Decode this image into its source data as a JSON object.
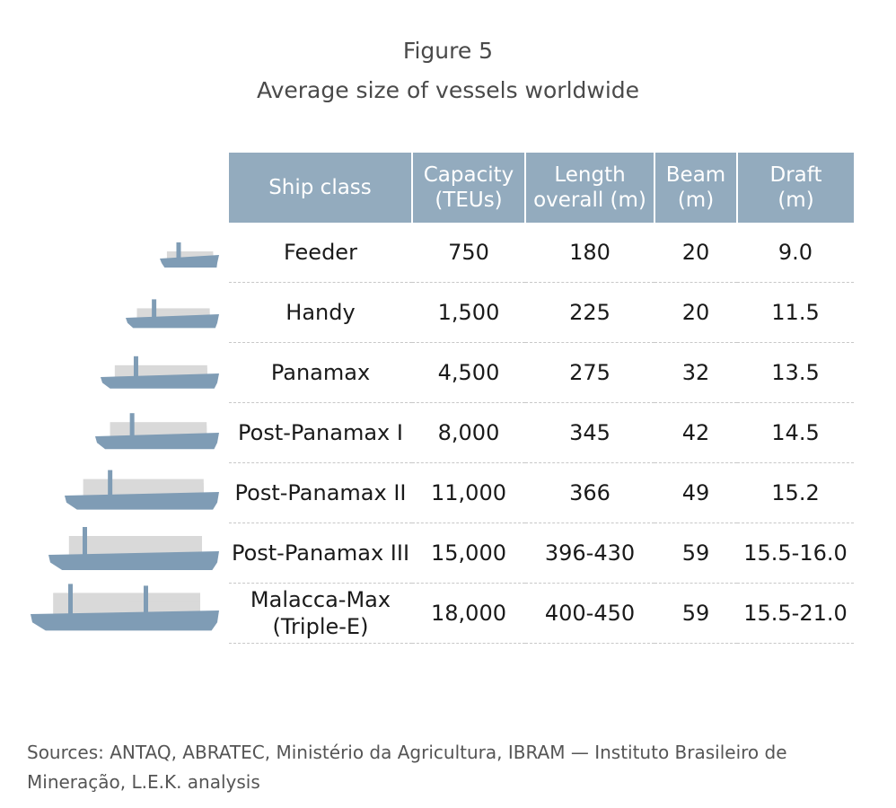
{
  "figure": {
    "label": "Figure 5",
    "title": "Average size of vessels worldwide"
  },
  "chart_data": {
    "type": "table",
    "title": "Average size of vessels worldwide",
    "columns": [
      "Ship class",
      "Capacity (TEUs)",
      "Length overall (m)",
      "Beam (m)",
      "Draft (m)"
    ],
    "column_lines": [
      [
        "Ship class"
      ],
      [
        "Capacity",
        "(TEUs)"
      ],
      [
        "Length",
        "overall (m)"
      ],
      [
        "Beam",
        "(m)"
      ],
      [
        "Draft",
        "(m)"
      ]
    ],
    "rows": [
      {
        "ship_class": "Feeder",
        "capacity": "750",
        "length": "180",
        "beam": "20",
        "draft": "9.0"
      },
      {
        "ship_class": "Handy",
        "capacity": "1,500",
        "length": "225",
        "beam": "20",
        "draft": "11.5"
      },
      {
        "ship_class": "Panamax",
        "capacity": "4,500",
        "length": "275",
        "beam": "32",
        "draft": "13.5"
      },
      {
        "ship_class": "Post-Panamax I",
        "capacity": "8,000",
        "length": "345",
        "beam": "42",
        "draft": "14.5"
      },
      {
        "ship_class": "Post-Panamax II",
        "capacity": "11,000",
        "length": "366",
        "beam": "49",
        "draft": "15.2"
      },
      {
        "ship_class": "Post-Panamax III",
        "capacity": "15,000",
        "length": "396-430",
        "beam": "59",
        "draft": "15.5-16.0"
      },
      {
        "ship_class": "Malacca-Max (Triple-E)",
        "ship_class_lines": [
          "Malacca-Max",
          "(Triple-E)"
        ],
        "capacity": "18,000",
        "length": "400-450",
        "beam": "59",
        "draft": "15.5-21.0"
      }
    ]
  },
  "colors": {
    "header_bg": "#93abbe",
    "hull": "#7f9cb5",
    "cargo": "#d9d9d9",
    "divider": "#c8c8c8"
  },
  "icons": [
    "ship-icon"
  ],
  "sources": "Sources: ANTAQ, ABRATEC, Ministério da Agricultura, IBRAM — Instituto Brasileiro de Mineração, L.E.K. analysis"
}
